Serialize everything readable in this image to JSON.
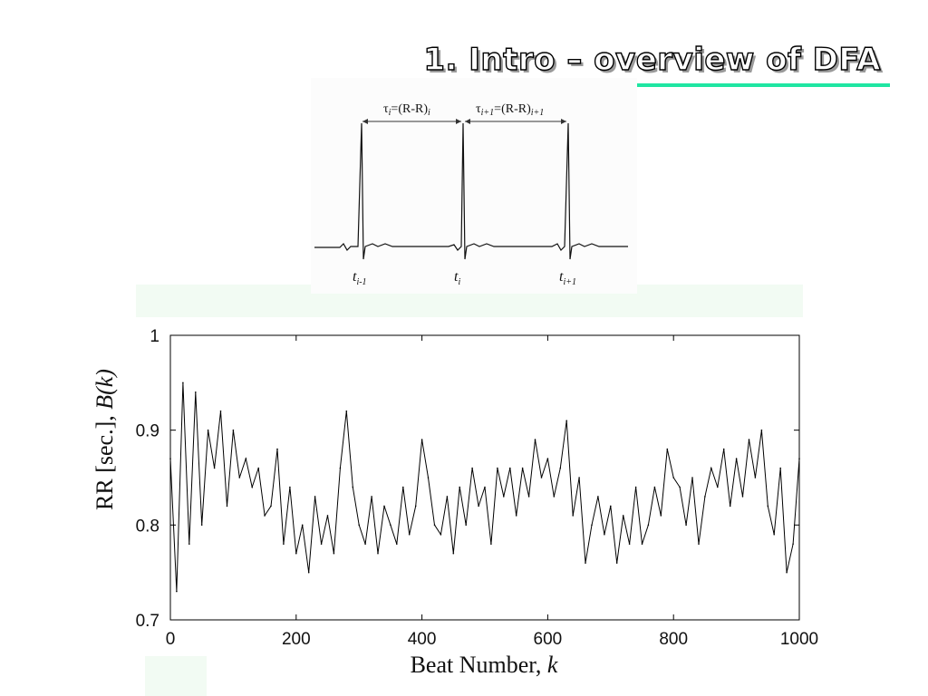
{
  "slide": {
    "title": "1. Intro – overview of DFA",
    "accent_color": "#1fe6a2"
  },
  "ecg_diagram": {
    "interval_labels": [
      {
        "tau": "τ",
        "sub": "i",
        "eq": "=(R-R)",
        "eqsub": "i"
      },
      {
        "tau": "τ",
        "sub": "i+1",
        "eq": "=(R-R)",
        "eqsub": "i+1"
      }
    ],
    "time_labels": [
      {
        "t": "t",
        "sub": "i-1"
      },
      {
        "t": "t",
        "sub": "i"
      },
      {
        "t": "t",
        "sub": "i+1"
      }
    ]
  },
  "chart_data": {
    "type": "line",
    "xlabel": "Beat Number, k",
    "xlabel_main": "Beat Number, ",
    "xlabel_var": "k",
    "ylabel_main": "RR [sec.]",
    "ylabel_sep": ", ",
    "ylabel_var": "B(k)",
    "xlim": [
      0,
      1000
    ],
    "ylim": [
      0.7,
      1.0
    ],
    "xticks": [
      0,
      200,
      400,
      600,
      800,
      1000
    ],
    "yticks": [
      0.7,
      0.8,
      0.9,
      1.0
    ],
    "xtick_labels": [
      "0",
      "200",
      "400",
      "600",
      "800",
      "1000"
    ],
    "ytick_labels": [
      "0.7",
      "0.8",
      "0.9",
      "1"
    ],
    "grid": false,
    "line_color": "#000000",
    "x": [
      0,
      10,
      20,
      30,
      40,
      50,
      60,
      70,
      80,
      90,
      100,
      110,
      120,
      130,
      140,
      150,
      160,
      170,
      180,
      190,
      200,
      210,
      220,
      230,
      240,
      250,
      260,
      270,
      280,
      290,
      300,
      310,
      320,
      330,
      340,
      350,
      360,
      370,
      380,
      390,
      400,
      410,
      420,
      430,
      440,
      450,
      460,
      470,
      480,
      490,
      500,
      510,
      520,
      530,
      540,
      550,
      560,
      570,
      580,
      590,
      600,
      610,
      620,
      630,
      640,
      650,
      660,
      670,
      680,
      690,
      700,
      710,
      720,
      730,
      740,
      750,
      760,
      770,
      780,
      790,
      800,
      810,
      820,
      830,
      840,
      850,
      860,
      870,
      880,
      890,
      900,
      910,
      920,
      930,
      940,
      950,
      960,
      970,
      980,
      990,
      1000
    ],
    "y": [
      0.87,
      0.73,
      0.95,
      0.78,
      0.94,
      0.8,
      0.9,
      0.86,
      0.92,
      0.82,
      0.9,
      0.85,
      0.87,
      0.84,
      0.86,
      0.81,
      0.82,
      0.88,
      0.78,
      0.84,
      0.77,
      0.8,
      0.75,
      0.83,
      0.78,
      0.81,
      0.77,
      0.86,
      0.92,
      0.84,
      0.8,
      0.78,
      0.83,
      0.77,
      0.82,
      0.8,
      0.78,
      0.84,
      0.79,
      0.82,
      0.89,
      0.85,
      0.8,
      0.79,
      0.83,
      0.77,
      0.84,
      0.8,
      0.86,
      0.82,
      0.84,
      0.78,
      0.86,
      0.83,
      0.86,
      0.81,
      0.86,
      0.83,
      0.89,
      0.85,
      0.87,
      0.83,
      0.86,
      0.91,
      0.81,
      0.85,
      0.76,
      0.8,
      0.83,
      0.79,
      0.82,
      0.76,
      0.81,
      0.78,
      0.84,
      0.78,
      0.8,
      0.84,
      0.81,
      0.88,
      0.85,
      0.84,
      0.8,
      0.85,
      0.78,
      0.83,
      0.86,
      0.84,
      0.88,
      0.82,
      0.87,
      0.83,
      0.89,
      0.85,
      0.9,
      0.82,
      0.79,
      0.86,
      0.75,
      0.78,
      0.87
    ]
  }
}
